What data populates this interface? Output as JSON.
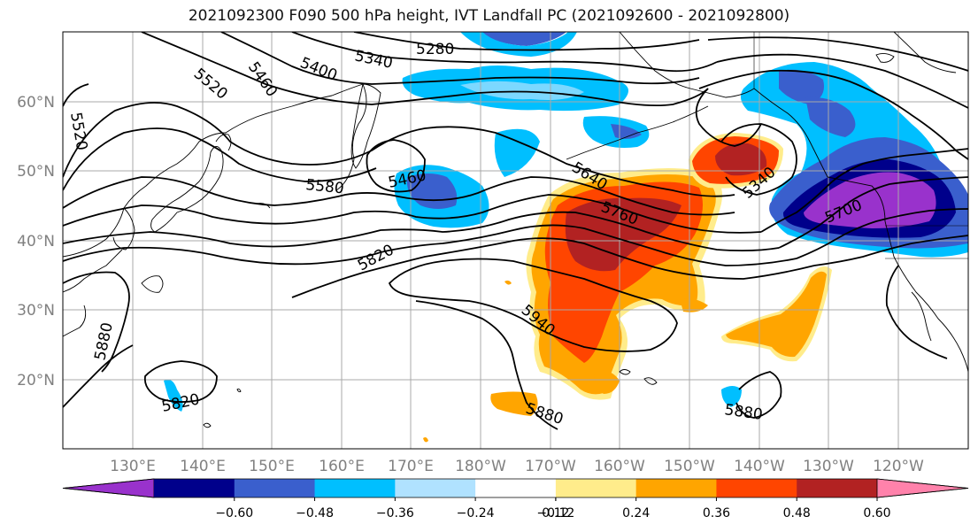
{
  "title": "2021092300 F090 500 hPa height, IVT Landfall PC (2021092600 - 2021092800)",
  "map": {
    "lon_ticks": [
      "130°E",
      "140°E",
      "150°E",
      "160°E",
      "170°E",
      "180°W",
      "170°W",
      "160°W",
      "150°W",
      "140°W",
      "130°W",
      "120°W"
    ],
    "lat_ticks": [
      "60°N",
      "50°N",
      "40°N",
      "30°N",
      "20°N"
    ],
    "contour_labels": [
      {
        "text": "5280"
      },
      {
        "text": "5340"
      },
      {
        "text": "5400"
      },
      {
        "text": "5460"
      },
      {
        "text": "5520"
      },
      {
        "text": "5520"
      },
      {
        "text": "5460"
      },
      {
        "text": "5580"
      },
      {
        "text": "5640"
      },
      {
        "text": "5760"
      },
      {
        "text": "5340"
      },
      {
        "text": "5700"
      },
      {
        "text": "5820"
      },
      {
        "text": "5940"
      },
      {
        "text": "5880"
      },
      {
        "text": "5880"
      },
      {
        "text": "5820"
      },
      {
        "text": "5880"
      }
    ]
  },
  "colorbar": {
    "ticks": [
      "−0.60",
      "−0.48",
      "−0.36",
      "−0.24",
      "−0.12",
      "0.12",
      "0.24",
      "0.36",
      "0.48",
      "0.60"
    ],
    "colors": [
      "#9932CC",
      "#00008B",
      "#3A5FCD",
      "#00BFFF",
      "#B0E2FF",
      "#FFFFFF",
      "#FFEC8B",
      "#FFA500",
      "#FF4500",
      "#B22222",
      "#FF82AB"
    ]
  }
}
